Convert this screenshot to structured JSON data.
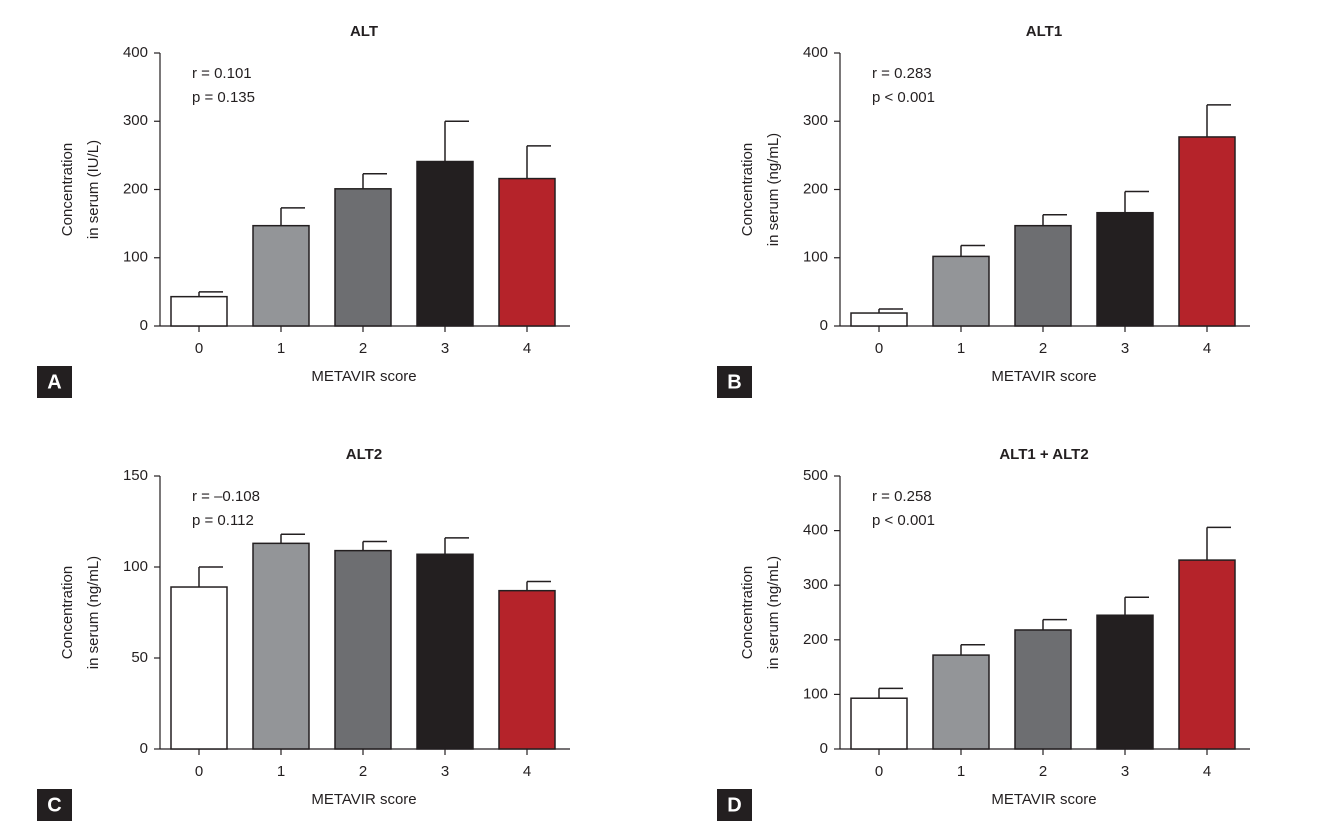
{
  "chart_data": [
    {
      "type": "bar",
      "title": "ALT",
      "ylabel": [
        "Concentration",
        "in serum (IU/L)"
      ],
      "xlabel": "METAVIR score",
      "panel": "A",
      "annotations": [
        "r = 0.101",
        "p = 0.135"
      ],
      "categories": [
        "0",
        "1",
        "2",
        "3",
        "4"
      ],
      "values": [
        43,
        147,
        201,
        241,
        216
      ],
      "errors": [
        7,
        26,
        22,
        59,
        48
      ],
      "colors": [
        "#ffffff",
        "#939598",
        "#6d6e71",
        "#231f20",
        "#b5232a"
      ],
      "ylim": [
        0,
        400
      ],
      "yticks": [
        0,
        100,
        200,
        300,
        400
      ]
    },
    {
      "type": "bar",
      "title": "ALT1",
      "ylabel": [
        "Concentration",
        "in serum (ng/mL)"
      ],
      "xlabel": "METAVIR score",
      "panel": "B",
      "annotations": [
        "r = 0.283",
        "p < 0.001"
      ],
      "categories": [
        "0",
        "1",
        "2",
        "3",
        "4"
      ],
      "values": [
        19,
        102,
        147,
        166,
        277
      ],
      "errors": [
        6,
        16,
        16,
        31,
        47
      ],
      "colors": [
        "#ffffff",
        "#939598",
        "#6d6e71",
        "#231f20",
        "#b5232a"
      ],
      "ylim": [
        0,
        400
      ],
      "yticks": [
        0,
        100,
        200,
        300,
        400
      ]
    },
    {
      "type": "bar",
      "title": "ALT2",
      "ylabel": [
        "Concentration",
        "in serum (ng/mL)"
      ],
      "xlabel": "METAVIR score",
      "panel": "C",
      "annotations": [
        "r = –0.108",
        "p = 0.112"
      ],
      "categories": [
        "0",
        "1",
        "2",
        "3",
        "4"
      ],
      "values": [
        89,
        113,
        109,
        107,
        87
      ],
      "errors": [
        11,
        5,
        5,
        9,
        5
      ],
      "colors": [
        "#ffffff",
        "#939598",
        "#6d6e71",
        "#231f20",
        "#b5232a"
      ],
      "ylim": [
        0,
        150
      ],
      "yticks": [
        0,
        50,
        100,
        150
      ]
    },
    {
      "type": "bar",
      "title": "ALT1 + ALT2",
      "ylabel": [
        "Concentration",
        "in serum (ng/mL)"
      ],
      "xlabel": "METAVIR score",
      "panel": "D",
      "annotations": [
        "r = 0.258",
        "p < 0.001"
      ],
      "categories": [
        "0",
        "1",
        "2",
        "3",
        "4"
      ],
      "values": [
        93,
        172,
        218,
        245,
        346
      ],
      "errors": [
        18,
        19,
        19,
        33,
        60
      ],
      "colors": [
        "#ffffff",
        "#939598",
        "#6d6e71",
        "#231f20",
        "#b5232a"
      ],
      "ylim": [
        0,
        500
      ],
      "yticks": [
        0,
        100,
        200,
        300,
        400,
        500
      ]
    }
  ]
}
